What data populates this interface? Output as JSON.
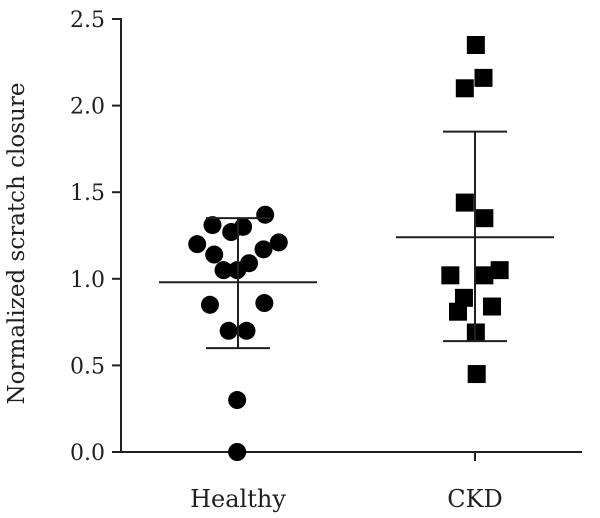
{
  "chart_data": {
    "type": "scatter",
    "ylabel": "Normalized scratch closure",
    "ylim": [
      0,
      2.5
    ],
    "yticks": [
      "0.0",
      "0.5",
      "1.0",
      "1.5",
      "2.0",
      "2.5"
    ],
    "categories": [
      "Healthy",
      "CKD"
    ],
    "series": [
      {
        "category": "Healthy",
        "marker": "circle",
        "color": "#000000",
        "mean": 0.98,
        "sd_upper": 1.35,
        "sd_lower": 0.6,
        "points": [
          {
            "offset": -0.3,
            "y": 1.31
          },
          {
            "offset": -0.08,
            "y": 1.27
          },
          {
            "offset": 0.06,
            "y": 1.3
          },
          {
            "offset": 0.32,
            "y": 1.37
          },
          {
            "offset": -0.48,
            "y": 1.2
          },
          {
            "offset": -0.28,
            "y": 1.14
          },
          {
            "offset": 0.48,
            "y": 1.21
          },
          {
            "offset": 0.3,
            "y": 1.17
          },
          {
            "offset": 0.13,
            "y": 1.09
          },
          {
            "offset": -0.17,
            "y": 1.05
          },
          {
            "offset": -0.01,
            "y": 1.05
          },
          {
            "offset": -0.33,
            "y": 0.85
          },
          {
            "offset": 0.31,
            "y": 0.86
          },
          {
            "offset": -0.11,
            "y": 0.7
          },
          {
            "offset": 0.1,
            "y": 0.7
          },
          {
            "offset": -0.01,
            "y": 0.3
          },
          {
            "offset": -0.01,
            "y": 0.0
          }
        ]
      },
      {
        "category": "CKD",
        "marker": "square",
        "color": "#000000",
        "mean": 1.24,
        "sd_upper": 1.85,
        "sd_lower": 0.64,
        "points": [
          {
            "offset": 0.01,
            "y": 2.35
          },
          {
            "offset": 0.1,
            "y": 2.16
          },
          {
            "offset": -0.12,
            "y": 2.1
          },
          {
            "offset": -0.12,
            "y": 1.44
          },
          {
            "offset": 0.11,
            "y": 1.35
          },
          {
            "offset": 0.29,
            "y": 1.05
          },
          {
            "offset": -0.29,
            "y": 1.02
          },
          {
            "offset": 0.11,
            "y": 1.02
          },
          {
            "offset": -0.13,
            "y": 0.89
          },
          {
            "offset": 0.2,
            "y": 0.84
          },
          {
            "offset": -0.2,
            "y": 0.81
          },
          {
            "offset": 0.01,
            "y": 0.69
          },
          {
            "offset": 0.02,
            "y": 0.45
          }
        ]
      }
    ]
  }
}
